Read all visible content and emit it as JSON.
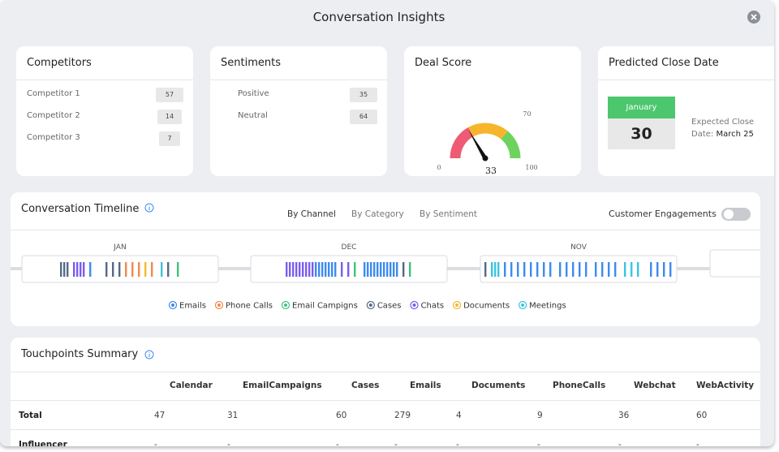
{
  "header": {
    "title": "Conversation Insights"
  },
  "competitors": {
    "title": "Competitors",
    "items": [
      {
        "name": "Competitor 1",
        "count": 57
      },
      {
        "name": "Competitor 2",
        "count": 14
      },
      {
        "name": "Competitor 3",
        "count": 7
      }
    ]
  },
  "sentiments": {
    "title": "Sentiments",
    "items": [
      {
        "name": "Positive",
        "count": 35,
        "color": "#3cb46e"
      },
      {
        "name": "Neutral",
        "count": 64,
        "color": "#f5c518"
      }
    ]
  },
  "deal_score": {
    "title": "Deal Score",
    "ticks": [
      0,
      70,
      100
    ],
    "value": 33
  },
  "predicted_close": {
    "title": "Predicted Close Date",
    "month": "January",
    "day": 30,
    "label": "Expected Close Date:",
    "date": "March 25"
  },
  "timeline": {
    "title": "Conversation Timeline",
    "tabs": [
      "By Channel",
      "By Category",
      "By Sentiment"
    ],
    "toggle": "Customer Engagements",
    "months": [
      "JAN",
      "DEC",
      "NOV"
    ],
    "legend": [
      {
        "name": "Emails",
        "color": "#3d8bef"
      },
      {
        "name": "Phone Calls",
        "color": "#f08a4b"
      },
      {
        "name": "Email Campigns",
        "color": "#3cc47c"
      },
      {
        "name": "Cases",
        "color": "#55698a"
      },
      {
        "name": "Chats",
        "color": "#7b5cf0"
      },
      {
        "name": "Documents",
        "color": "#f5b82e"
      },
      {
        "name": "Meetings",
        "color": "#3cc4e0"
      }
    ]
  },
  "touchpoints": {
    "title": "Touchpoints Summary",
    "columns": [
      "Calendar",
      "EmailCampaigns",
      "Cases",
      "Emails",
      "Documents",
      "PhoneCalls",
      "Webchat",
      "WebActivity"
    ],
    "rows": [
      {
        "label": "Total",
        "values": [
          47,
          31,
          60,
          279,
          4,
          9,
          36,
          60
        ]
      },
      {
        "label": "Influencer",
        "values": [
          "-",
          "-",
          "-",
          "-",
          "-",
          "-",
          "-",
          "-"
        ]
      }
    ]
  }
}
